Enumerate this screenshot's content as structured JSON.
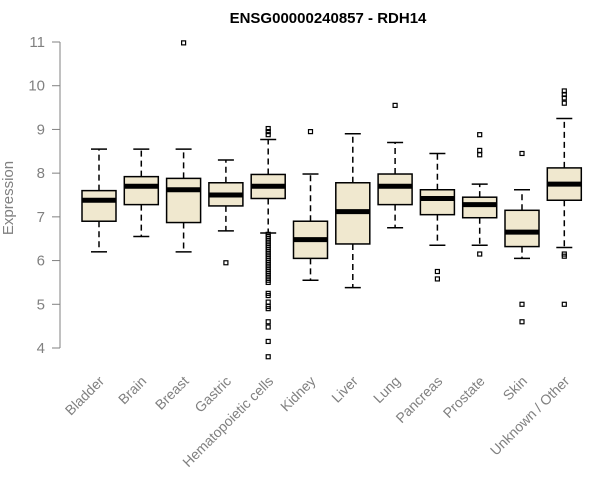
{
  "chart_data": {
    "type": "boxplot",
    "title": "ENSG00000240857 - RDH14",
    "xlabel": "",
    "ylabel": "Expression",
    "ylim": [
      4,
      11
    ],
    "yticks": [
      4,
      5,
      6,
      7,
      8,
      9,
      10,
      11
    ],
    "categories": [
      "Bladder",
      "Brain",
      "Breast",
      "Gastric",
      "Hematopoietic cells",
      "Kidney",
      "Liver",
      "Lung",
      "Pancreas",
      "Prostate",
      "Skin",
      "Unknown / Other"
    ],
    "boxes": [
      {
        "name": "Bladder",
        "whisker_low": 6.2,
        "q1": 6.9,
        "median": 7.38,
        "q3": 7.6,
        "whisker_high": 8.55,
        "outliers": []
      },
      {
        "name": "Brain",
        "whisker_low": 6.55,
        "q1": 7.28,
        "median": 7.7,
        "q3": 7.92,
        "whisker_high": 8.55,
        "outliers": []
      },
      {
        "name": "Breast",
        "whisker_low": 6.2,
        "q1": 6.87,
        "median": 7.62,
        "q3": 7.88,
        "whisker_high": 8.55,
        "outliers": [
          10.98
        ]
      },
      {
        "name": "Gastric",
        "whisker_low": 6.68,
        "q1": 7.25,
        "median": 7.5,
        "q3": 7.78,
        "whisker_high": 8.3,
        "outliers": [
          5.95
        ]
      },
      {
        "name": "Hematopoietic cells",
        "whisker_low": 6.63,
        "q1": 7.42,
        "median": 7.7,
        "q3": 7.97,
        "whisker_high": 8.77,
        "outliers": [
          9.02,
          8.95,
          8.88,
          6.6,
          6.55,
          6.5,
          6.45,
          6.4,
          6.35,
          6.3,
          6.25,
          6.2,
          6.15,
          6.1,
          6.05,
          6.0,
          5.95,
          5.9,
          5.85,
          5.8,
          5.75,
          5.7,
          5.65,
          5.6,
          5.55,
          5.5,
          5.25,
          5.2,
          5.05,
          4.95,
          4.9,
          4.6,
          4.48,
          4.15,
          3.8
        ]
      },
      {
        "name": "Kidney",
        "whisker_low": 5.55,
        "q1": 6.05,
        "median": 6.48,
        "q3": 6.9,
        "whisker_high": 7.98,
        "outliers": [
          8.95
        ]
      },
      {
        "name": "Liver",
        "whisker_low": 5.38,
        "q1": 6.38,
        "median": 7.12,
        "q3": 7.78,
        "whisker_high": 8.9,
        "outliers": []
      },
      {
        "name": "Lung",
        "whisker_low": 6.75,
        "q1": 7.28,
        "median": 7.7,
        "q3": 7.98,
        "whisker_high": 8.7,
        "outliers": [
          9.55
        ]
      },
      {
        "name": "Pancreas",
        "whisker_low": 6.35,
        "q1": 7.05,
        "median": 7.42,
        "q3": 7.62,
        "whisker_high": 8.45,
        "outliers": [
          5.75,
          5.58
        ]
      },
      {
        "name": "Prostate",
        "whisker_low": 6.35,
        "q1": 6.98,
        "median": 7.28,
        "q3": 7.45,
        "whisker_high": 7.75,
        "outliers": [
          8.88,
          8.52,
          8.42,
          6.15
        ]
      },
      {
        "name": "Skin",
        "whisker_low": 6.05,
        "q1": 6.32,
        "median": 6.65,
        "q3": 7.15,
        "whisker_high": 7.62,
        "outliers": [
          8.45,
          5.0,
          4.6
        ]
      },
      {
        "name": "Unknown / Other",
        "whisker_low": 6.3,
        "q1": 7.38,
        "median": 7.75,
        "q3": 8.12,
        "whisker_high": 9.25,
        "outliers": [
          9.88,
          9.8,
          9.72,
          9.6,
          6.15,
          6.1,
          5.0
        ]
      }
    ],
    "colors": {
      "box_fill": "#f0e8cf",
      "axis": "#808080",
      "title": "#000000"
    },
    "grid": false,
    "legend": "none"
  }
}
